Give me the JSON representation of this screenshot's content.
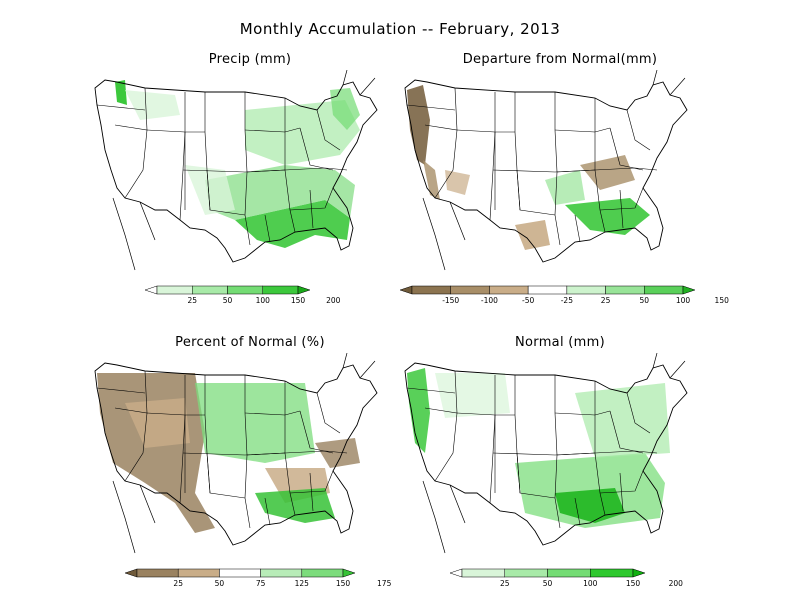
{
  "title": "Monthly Accumulation -- February, 2013",
  "panels": [
    {
      "id": "precip",
      "title": "Precip (mm)",
      "legend": {
        "colors": [
          "#ffffff",
          "#d9f5d9",
          "#a8eaa8",
          "#74dc74",
          "#3cc83c",
          "#18a818"
        ],
        "ticks": [
          "25",
          "50",
          "100",
          "150",
          "200"
        ]
      }
    },
    {
      "id": "departure",
      "title": "Departure from Normal(mm)",
      "legend": {
        "colors": [
          "#6f5a3a",
          "#8c7450",
          "#a88e68",
          "#c9ad88",
          "#ffffff",
          "#cdf3cd",
          "#98e498",
          "#5ad05a",
          "#22b022"
        ],
        "ticks": [
          "-150",
          "-100",
          "-50",
          "-25",
          "25",
          "50",
          "100",
          "150"
        ]
      }
    },
    {
      "id": "percent",
      "title": "Percent of Normal (%)",
      "legend": {
        "colors": [
          "#6f5a3a",
          "#9a8260",
          "#c9ad88",
          "#ffffff",
          "#b8ecb8",
          "#7cdc7c",
          "#36c236"
        ],
        "ticks": [
          "25",
          "50",
          "75",
          "125",
          "150",
          "175"
        ]
      }
    },
    {
      "id": "normal",
      "title": "Normal (mm)",
      "legend": {
        "colors": [
          "#ffffff",
          "#d9f5d9",
          "#a8eaa8",
          "#74dc74",
          "#2ec82e",
          "#10b010"
        ],
        "ticks": [
          "25",
          "50",
          "100",
          "150",
          "200"
        ]
      }
    }
  ]
}
